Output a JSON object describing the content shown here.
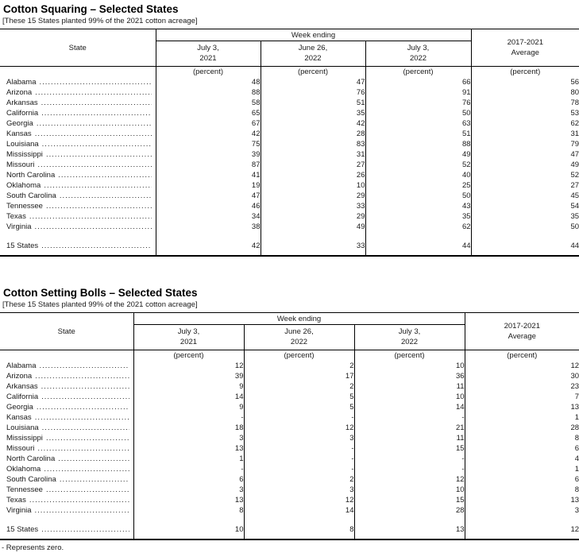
{
  "tables": [
    {
      "title": "Cotton Squaring – Selected States",
      "subtitle": "[These 15 States planted 99% of the 2021 cotton acreage]",
      "state_header": "State",
      "week_group_header": "Week ending",
      "avg_header": {
        "line1": "2017-2021",
        "line2": "Average"
      },
      "week_columns": [
        {
          "line1": "July 3,",
          "line2": "2021"
        },
        {
          "line1": "June 26,",
          "line2": "2022"
        },
        {
          "line1": "July 3,",
          "line2": "2022"
        }
      ],
      "unit": "(percent)",
      "rows": [
        {
          "state": "Alabama",
          "values": [
            "48",
            "47",
            "66",
            "56"
          ]
        },
        {
          "state": "Arizona",
          "values": [
            "88",
            "76",
            "91",
            "80"
          ]
        },
        {
          "state": "Arkansas",
          "values": [
            "58",
            "51",
            "76",
            "78"
          ]
        },
        {
          "state": "California",
          "values": [
            "65",
            "35",
            "50",
            "53"
          ]
        },
        {
          "state": "Georgia",
          "values": [
            "67",
            "42",
            "63",
            "62"
          ]
        },
        {
          "state": "Kansas",
          "values": [
            "42",
            "28",
            "51",
            "31"
          ]
        },
        {
          "state": "Louisiana",
          "values": [
            "75",
            "83",
            "88",
            "79"
          ]
        },
        {
          "state": "Mississippi",
          "values": [
            "39",
            "31",
            "49",
            "47"
          ]
        },
        {
          "state": "Missouri",
          "values": [
            "87",
            "27",
            "52",
            "49"
          ]
        },
        {
          "state": "North Carolina",
          "values": [
            "41",
            "26",
            "40",
            "52"
          ]
        },
        {
          "state": "Oklahoma",
          "values": [
            "19",
            "10",
            "25",
            "27"
          ]
        },
        {
          "state": "South Carolina",
          "values": [
            "47",
            "29",
            "50",
            "45"
          ]
        },
        {
          "state": "Tennessee",
          "values": [
            "46",
            "33",
            "43",
            "54"
          ]
        },
        {
          "state": "Texas",
          "values": [
            "34",
            "29",
            "35",
            "35"
          ]
        },
        {
          "state": "Virginia",
          "values": [
            "38",
            "49",
            "62",
            "50"
          ]
        }
      ],
      "total_row": {
        "state": "15 States",
        "values": [
          "42",
          "33",
          "44",
          "44"
        ]
      }
    },
    {
      "title": "Cotton Setting Bolls – Selected States",
      "subtitle": "[These 15 States planted 99% of the 2021 cotton acreage]",
      "state_header": "State",
      "week_group_header": "Week ending",
      "avg_header": {
        "line1": "2017-2021",
        "line2": "Average"
      },
      "week_columns": [
        {
          "line1": "July 3,",
          "line2": "2021"
        },
        {
          "line1": "June 26,",
          "line2": "2022"
        },
        {
          "line1": "July 3,",
          "line2": "2022"
        }
      ],
      "unit": "(percent)",
      "rows": [
        {
          "state": "Alabama",
          "values": [
            "12",
            "2",
            "10",
            "12"
          ]
        },
        {
          "state": "Arizona",
          "values": [
            "39",
            "17",
            "36",
            "30"
          ]
        },
        {
          "state": "Arkansas",
          "values": [
            "9",
            "2",
            "11",
            "23"
          ]
        },
        {
          "state": "California",
          "values": [
            "14",
            "5",
            "10",
            "7"
          ]
        },
        {
          "state": "Georgia",
          "values": [
            "9",
            "5",
            "14",
            "13"
          ]
        },
        {
          "state": "Kansas",
          "values": [
            "-",
            "-",
            "-",
            "1"
          ]
        },
        {
          "state": "Louisiana",
          "values": [
            "18",
            "12",
            "21",
            "28"
          ]
        },
        {
          "state": "Mississippi",
          "values": [
            "3",
            "3",
            "11",
            "8"
          ]
        },
        {
          "state": "Missouri",
          "values": [
            "13",
            "-",
            "15",
            "6"
          ]
        },
        {
          "state": "North Carolina",
          "values": [
            "1",
            "-",
            "-",
            "4"
          ]
        },
        {
          "state": "Oklahoma",
          "values": [
            "-",
            "-",
            "-",
            "1"
          ]
        },
        {
          "state": "South Carolina",
          "values": [
            "6",
            "2",
            "12",
            "6"
          ]
        },
        {
          "state": "Tennessee",
          "values": [
            "3",
            "3",
            "10",
            "8"
          ]
        },
        {
          "state": "Texas",
          "values": [
            "13",
            "12",
            "15",
            "13"
          ]
        },
        {
          "state": "Virginia",
          "values": [
            "8",
            "14",
            "28",
            "3"
          ]
        }
      ],
      "total_row": {
        "state": "15 States",
        "values": [
          "10",
          "8",
          "13",
          "12"
        ]
      }
    }
  ],
  "footnote": "- Represents zero."
}
